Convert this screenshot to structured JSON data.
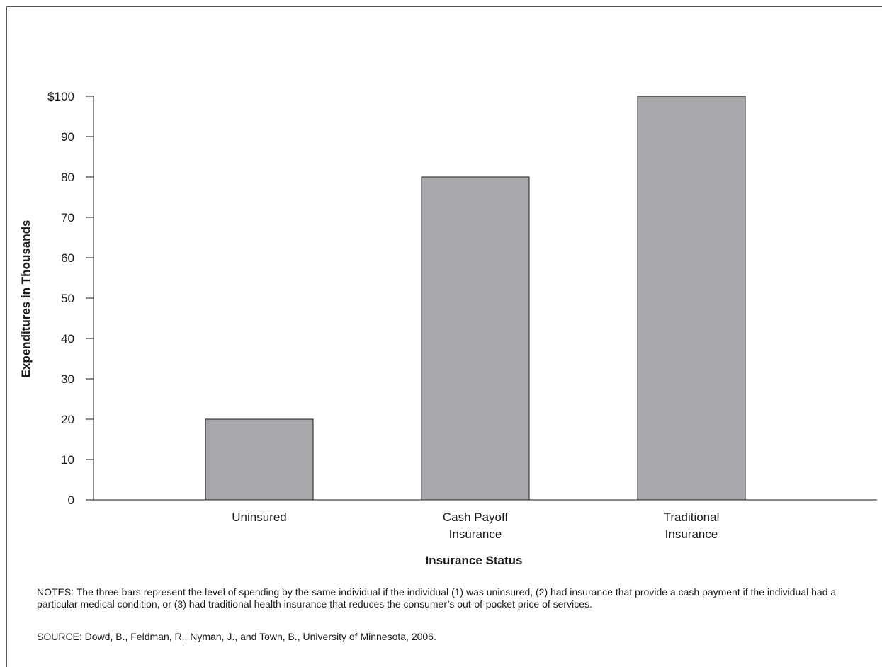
{
  "chart_data": {
    "type": "bar",
    "categories": [
      [
        "Uninsured"
      ],
      [
        "Cash Payoff",
        "Insurance"
      ],
      [
        "Traditional",
        "Insurance"
      ]
    ],
    "values": [
      20,
      80,
      100
    ],
    "ylim": [
      0,
      100
    ],
    "yticks": [
      "0",
      "10",
      "20",
      "30",
      "40",
      "50",
      "60",
      "70",
      "80",
      "90",
      "$100"
    ],
    "xlabel": "Insurance Status",
    "ylabel": "Expenditures in Thousands",
    "bar_color": "#a6a8ab",
    "grid": false,
    "legend": "none"
  },
  "notes": "NOTES: The three bars represent the level of spending by the same individual if the individual (1) was uninsured, (2) had insurance that provide a cash payment if the individual had a particular medical condition, or (3) had traditional health insurance that reduces the consumer’s out-of-pocket price of services.",
  "source": "SOURCE: Dowd, B., Feldman, R., Nyman, J., and Town, B., University of Minnesota, 2006."
}
